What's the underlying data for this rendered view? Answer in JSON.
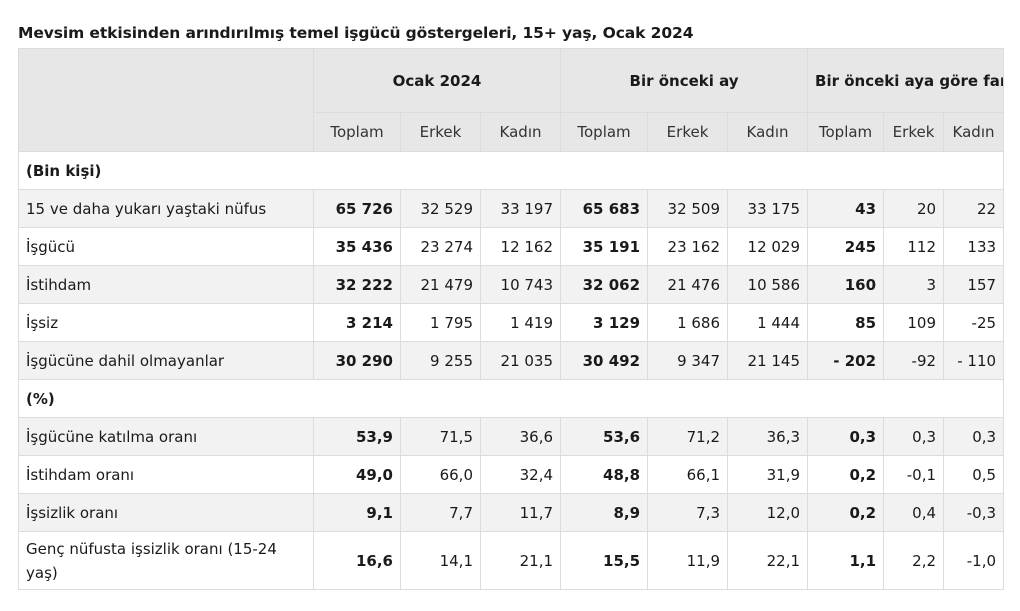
{
  "title": "Mevsim etkisinden arındırılmış temel işgücü göstergeleri, 15+ yaş, Ocak 2024",
  "groups": [
    "Ocak 2024",
    "Bir önceki ay",
    "Bir önceki aya göre fark"
  ],
  "subheaders": [
    "Toplam",
    "Erkek",
    "Kadın",
    "Toplam",
    "Erkek",
    "Kadın",
    "Toplam",
    "Erkek",
    "Kadın"
  ],
  "sections": [
    {
      "title": "(Bin kişi)",
      "rows": [
        {
          "label": "15 ve daha yukarı yaştaki nüfus",
          "values": [
            "65 726",
            "32 529",
            "33 197",
            "65 683",
            "32 509",
            "33 175",
            "43",
            "20",
            "22"
          ]
        },
        {
          "label": "İşgücü",
          "values": [
            "35 436",
            "23 274",
            "12 162",
            "35 191",
            "23 162",
            "12 029",
            "245",
            "112",
            "133"
          ]
        },
        {
          "label": "İstihdam",
          "values": [
            "32 222",
            "21 479",
            "10 743",
            "32 062",
            "21 476",
            "10 586",
            "160",
            "3",
            "157"
          ]
        },
        {
          "label": "İşsiz",
          "values": [
            "3 214",
            "1 795",
            "1 419",
            "3 129",
            "1 686",
            "1 444",
            "85",
            "109",
            "-25"
          ]
        },
        {
          "label": "İşgücüne dahil olmayanlar",
          "values": [
            "30 290",
            "9 255",
            "21 035",
            "30 492",
            "9 347",
            "21 145",
            "- 202",
            "-92",
            "- 110"
          ]
        }
      ]
    },
    {
      "title": "(%)",
      "rows": [
        {
          "label": "İşgücüne katılma oranı",
          "values": [
            "53,9",
            "71,5",
            "36,6",
            "53,6",
            "71,2",
            "36,3",
            "0,3",
            "0,3",
            "0,3"
          ]
        },
        {
          "label": "İstihdam oranı",
          "values": [
            "49,0",
            "66,0",
            "32,4",
            "48,8",
            "66,1",
            "31,9",
            "0,2",
            "-0,1",
            "0,5"
          ]
        },
        {
          "label": "İşsizlik oranı",
          "values": [
            "9,1",
            "7,7",
            "11,7",
            "8,9",
            "7,3",
            "12,0",
            "0,2",
            "0,4",
            "-0,3"
          ]
        },
        {
          "label": "Genç nüfusta işsizlik oranı (15-24 yaş)",
          "values": [
            "16,6",
            "14,1",
            "21,1",
            "15,5",
            "11,9",
            "22,1",
            "1,1",
            "2,2",
            "-1,0"
          ]
        }
      ]
    }
  ]
}
